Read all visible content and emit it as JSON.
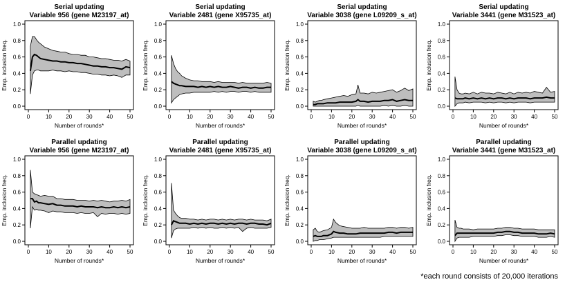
{
  "chart_data": [
    {
      "type": "area",
      "title_line1": "Serial updating",
      "title_line2": "Variable 956 (gene M23197_at)",
      "xlabel": "Number of rounds*",
      "ylabel": "Emp. inclusion freq.",
      "xlim": [
        0,
        50
      ],
      "ylim": [
        0,
        1
      ],
      "xticks": [
        0,
        10,
        20,
        30,
        40,
        50
      ],
      "yticks": [
        0.0,
        0.2,
        0.4,
        0.6,
        0.8,
        1.0
      ],
      "x": [
        1,
        2,
        3,
        4,
        5,
        6,
        8,
        10,
        12,
        14,
        16,
        18,
        20,
        22,
        24,
        26,
        28,
        30,
        32,
        34,
        36,
        38,
        40,
        42,
        44,
        46,
        48,
        50
      ],
      "mean": [
        0.43,
        0.6,
        0.63,
        0.62,
        0.6,
        0.58,
        0.57,
        0.56,
        0.55,
        0.55,
        0.54,
        0.54,
        0.53,
        0.53,
        0.52,
        0.52,
        0.51,
        0.5,
        0.49,
        0.49,
        0.48,
        0.48,
        0.47,
        0.47,
        0.46,
        0.45,
        0.48,
        0.47
      ],
      "upper": [
        0.73,
        0.85,
        0.85,
        0.81,
        0.78,
        0.76,
        0.72,
        0.7,
        0.68,
        0.67,
        0.66,
        0.66,
        0.64,
        0.63,
        0.63,
        0.62,
        0.62,
        0.6,
        0.6,
        0.59,
        0.58,
        0.58,
        0.57,
        0.56,
        0.56,
        0.55,
        0.57,
        0.55
      ],
      "lower": [
        0.15,
        0.38,
        0.43,
        0.44,
        0.44,
        0.43,
        0.43,
        0.43,
        0.44,
        0.43,
        0.43,
        0.42,
        0.43,
        0.42,
        0.42,
        0.41,
        0.41,
        0.4,
        0.39,
        0.39,
        0.38,
        0.38,
        0.37,
        0.38,
        0.37,
        0.35,
        0.38,
        0.38
      ]
    },
    {
      "type": "area",
      "title_line1": "Serial updating",
      "title_line2": "Variable 2481 (gene X95735_at)",
      "xlabel": "Number of rounds*",
      "ylabel": "Emp. inclusion freq.",
      "xlim": [
        0,
        50
      ],
      "ylim": [
        0,
        1
      ],
      "xticks": [
        0,
        10,
        20,
        30,
        40,
        50
      ],
      "yticks": [
        0.0,
        0.2,
        0.4,
        0.6,
        0.8,
        1.0
      ],
      "x": [
        1,
        2,
        3,
        4,
        5,
        6,
        8,
        10,
        12,
        14,
        16,
        18,
        20,
        22,
        24,
        26,
        28,
        30,
        32,
        34,
        36,
        38,
        40,
        42,
        44,
        46,
        48,
        50
      ],
      "mean": [
        0.3,
        0.28,
        0.27,
        0.26,
        0.25,
        0.25,
        0.24,
        0.24,
        0.24,
        0.23,
        0.24,
        0.23,
        0.24,
        0.23,
        0.24,
        0.23,
        0.23,
        0.24,
        0.23,
        0.22,
        0.23,
        0.23,
        0.22,
        0.23,
        0.22,
        0.22,
        0.23,
        0.23
      ],
      "upper": [
        0.62,
        0.52,
        0.46,
        0.42,
        0.4,
        0.37,
        0.34,
        0.32,
        0.31,
        0.31,
        0.3,
        0.3,
        0.3,
        0.29,
        0.3,
        0.29,
        0.29,
        0.29,
        0.29,
        0.28,
        0.29,
        0.28,
        0.28,
        0.28,
        0.28,
        0.28,
        0.29,
        0.28
      ],
      "lower": [
        0.04,
        0.08,
        0.1,
        0.12,
        0.14,
        0.15,
        0.16,
        0.16,
        0.17,
        0.17,
        0.17,
        0.17,
        0.17,
        0.18,
        0.17,
        0.18,
        0.17,
        0.18,
        0.18,
        0.17,
        0.18,
        0.18,
        0.17,
        0.18,
        0.17,
        0.17,
        0.17,
        0.17
      ]
    },
    {
      "type": "area",
      "title_line1": "Serial updating",
      "title_line2": "Variable 3038 (gene L09209_s_at)",
      "xlabel": "Number of rounds*",
      "ylabel": "Emp. inclusion freq.",
      "xlim": [
        0,
        50
      ],
      "ylim": [
        0,
        1
      ],
      "xticks": [
        0,
        10,
        20,
        30,
        40,
        50
      ],
      "yticks": [
        0.0,
        0.2,
        0.4,
        0.6,
        0.8,
        1.0
      ],
      "x": [
        1,
        2,
        3,
        4,
        5,
        6,
        8,
        10,
        12,
        14,
        16,
        18,
        20,
        22,
        23,
        24,
        26,
        28,
        30,
        32,
        34,
        36,
        38,
        40,
        42,
        44,
        46,
        48,
        50
      ],
      "mean": [
        0.02,
        0.02,
        0.03,
        0.03,
        0.03,
        0.03,
        0.04,
        0.04,
        0.04,
        0.05,
        0.05,
        0.05,
        0.05,
        0.06,
        0.08,
        0.06,
        0.06,
        0.05,
        0.06,
        0.06,
        0.06,
        0.07,
        0.07,
        0.08,
        0.06,
        0.07,
        0.08,
        0.07,
        0.07
      ],
      "upper": [
        0.06,
        0.05,
        0.06,
        0.07,
        0.07,
        0.08,
        0.09,
        0.1,
        0.11,
        0.12,
        0.13,
        0.12,
        0.14,
        0.15,
        0.26,
        0.16,
        0.16,
        0.15,
        0.17,
        0.16,
        0.17,
        0.18,
        0.19,
        0.2,
        0.17,
        0.19,
        0.22,
        0.19,
        0.21
      ],
      "lower": [
        0.0,
        0.0,
        0.0,
        0.0,
        0.0,
        0.0,
        0.0,
        0.0,
        0.0,
        0.0,
        0.0,
        0.0,
        0.0,
        0.0,
        0.01,
        0.0,
        0.0,
        0.0,
        0.0,
        0.0,
        0.0,
        0.01,
        0.0,
        0.01,
        0.0,
        0.0,
        0.01,
        0.0,
        0.0
      ]
    },
    {
      "type": "area",
      "title_line1": "Serial updating",
      "title_line2": "Variable 3441 (gene M31523_at)",
      "xlabel": "Number of rounds*",
      "ylabel": "Emp. inclusion freq.",
      "xlim": [
        0,
        50
      ],
      "ylim": [
        0,
        1
      ],
      "xticks": [
        0,
        10,
        20,
        30,
        40,
        50
      ],
      "yticks": [
        0.0,
        0.2,
        0.4,
        0.6,
        0.8,
        1.0
      ],
      "x": [
        1,
        2,
        3,
        4,
        5,
        6,
        8,
        10,
        12,
        14,
        16,
        18,
        20,
        22,
        24,
        26,
        28,
        30,
        32,
        34,
        36,
        38,
        40,
        42,
        44,
        46,
        48,
        50
      ],
      "mean": [
        0.1,
        0.09,
        0.09,
        0.09,
        0.09,
        0.1,
        0.09,
        0.1,
        0.09,
        0.1,
        0.09,
        0.1,
        0.09,
        0.1,
        0.1,
        0.09,
        0.1,
        0.09,
        0.1,
        0.1,
        0.1,
        0.09,
        0.1,
        0.1,
        0.1,
        0.11,
        0.1,
        0.1
      ],
      "upper": [
        0.36,
        0.2,
        0.16,
        0.15,
        0.15,
        0.16,
        0.15,
        0.17,
        0.15,
        0.17,
        0.16,
        0.16,
        0.15,
        0.17,
        0.16,
        0.15,
        0.17,
        0.15,
        0.17,
        0.16,
        0.17,
        0.16,
        0.18,
        0.17,
        0.16,
        0.23,
        0.17,
        0.18
      ],
      "lower": [
        0.0,
        0.03,
        0.04,
        0.04,
        0.04,
        0.05,
        0.04,
        0.05,
        0.05,
        0.05,
        0.04,
        0.05,
        0.04,
        0.05,
        0.05,
        0.04,
        0.05,
        0.04,
        0.05,
        0.05,
        0.05,
        0.04,
        0.05,
        0.05,
        0.05,
        0.05,
        0.05,
        0.05
      ]
    },
    {
      "type": "area",
      "title_line1": "Parallel updating",
      "title_line2": "Variable 956 (gene M23197_at)",
      "xlabel": "Number of rounds*",
      "ylabel": "Emp. inclusion freq.",
      "xlim": [
        0,
        50
      ],
      "ylim": [
        0,
        1
      ],
      "xticks": [
        0,
        10,
        20,
        30,
        40,
        50
      ],
      "yticks": [
        0.0,
        0.2,
        0.4,
        0.6,
        0.8,
        1.0
      ],
      "x": [
        1,
        2,
        3,
        4,
        5,
        6,
        8,
        10,
        12,
        14,
        16,
        18,
        20,
        22,
        24,
        26,
        28,
        30,
        32,
        34,
        36,
        38,
        40,
        42,
        44,
        46,
        48,
        50
      ],
      "mean": [
        0.52,
        0.52,
        0.48,
        0.49,
        0.47,
        0.47,
        0.46,
        0.45,
        0.46,
        0.44,
        0.44,
        0.43,
        0.43,
        0.43,
        0.42,
        0.43,
        0.42,
        0.42,
        0.42,
        0.41,
        0.42,
        0.41,
        0.41,
        0.42,
        0.41,
        0.42,
        0.41,
        0.42
      ],
      "upper": [
        0.87,
        0.6,
        0.58,
        0.57,
        0.56,
        0.55,
        0.56,
        0.55,
        0.55,
        0.52,
        0.52,
        0.51,
        0.51,
        0.51,
        0.5,
        0.5,
        0.5,
        0.49,
        0.5,
        0.49,
        0.5,
        0.49,
        0.48,
        0.49,
        0.49,
        0.5,
        0.49,
        0.51
      ],
      "lower": [
        0.16,
        0.42,
        0.38,
        0.39,
        0.38,
        0.38,
        0.37,
        0.35,
        0.37,
        0.36,
        0.36,
        0.35,
        0.35,
        0.35,
        0.34,
        0.35,
        0.34,
        0.34,
        0.35,
        0.3,
        0.34,
        0.33,
        0.34,
        0.34,
        0.33,
        0.34,
        0.33,
        0.34
      ]
    },
    {
      "type": "area",
      "title_line1": "Parallel updating",
      "title_line2": "Variable 2481 (gene X95735_at)",
      "xlabel": "Number of rounds*",
      "ylabel": "Emp. inclusion freq.",
      "xlim": [
        0,
        50
      ],
      "ylim": [
        0,
        1
      ],
      "xticks": [
        0,
        10,
        20,
        30,
        40,
        50
      ],
      "yticks": [
        0.0,
        0.2,
        0.4,
        0.6,
        0.8,
        1.0
      ],
      "x": [
        1,
        2,
        3,
        4,
        5,
        6,
        8,
        10,
        12,
        14,
        16,
        18,
        20,
        22,
        24,
        26,
        28,
        30,
        32,
        34,
        36,
        38,
        40,
        42,
        44,
        46,
        48,
        50
      ],
      "mean": [
        0.2,
        0.25,
        0.24,
        0.23,
        0.22,
        0.22,
        0.22,
        0.21,
        0.22,
        0.21,
        0.22,
        0.21,
        0.22,
        0.22,
        0.21,
        0.22,
        0.21,
        0.22,
        0.21,
        0.22,
        0.22,
        0.21,
        0.22,
        0.22,
        0.21,
        0.21,
        0.2,
        0.22
      ],
      "upper": [
        0.71,
        0.38,
        0.34,
        0.31,
        0.29,
        0.28,
        0.28,
        0.27,
        0.27,
        0.26,
        0.27,
        0.26,
        0.27,
        0.27,
        0.26,
        0.27,
        0.26,
        0.27,
        0.26,
        0.27,
        0.27,
        0.26,
        0.27,
        0.26,
        0.26,
        0.26,
        0.25,
        0.27
      ],
      "lower": [
        0.04,
        0.13,
        0.15,
        0.16,
        0.16,
        0.16,
        0.16,
        0.16,
        0.17,
        0.16,
        0.17,
        0.16,
        0.17,
        0.16,
        0.16,
        0.17,
        0.16,
        0.17,
        0.16,
        0.17,
        0.12,
        0.16,
        0.17,
        0.16,
        0.16,
        0.16,
        0.16,
        0.17
      ]
    },
    {
      "type": "area",
      "title_line1": "Parallel updating",
      "title_line2": "Variable 3038 (gene L09209_s_at)",
      "xlabel": "Number of rounds*",
      "ylabel": "Emp. inclusion freq.",
      "xlim": [
        0,
        50
      ],
      "ylim": [
        0,
        1
      ],
      "xticks": [
        0,
        10,
        20,
        30,
        40,
        50
      ],
      "yticks": [
        0.0,
        0.2,
        0.4,
        0.6,
        0.8,
        1.0
      ],
      "x": [
        1,
        2,
        3,
        4,
        5,
        6,
        8,
        10,
        11,
        12,
        14,
        16,
        18,
        20,
        22,
        24,
        26,
        28,
        30,
        32,
        34,
        36,
        38,
        40,
        42,
        44,
        46,
        48,
        50
      ],
      "mean": [
        0.06,
        0.07,
        0.06,
        0.06,
        0.06,
        0.07,
        0.07,
        0.09,
        0.12,
        0.11,
        0.1,
        0.1,
        0.09,
        0.09,
        0.09,
        0.1,
        0.1,
        0.1,
        0.1,
        0.1,
        0.1,
        0.1,
        0.11,
        0.11,
        0.1,
        0.11,
        0.11,
        0.11,
        0.11
      ],
      "upper": [
        0.14,
        0.16,
        0.12,
        0.11,
        0.12,
        0.13,
        0.14,
        0.17,
        0.27,
        0.23,
        0.19,
        0.18,
        0.17,
        0.16,
        0.16,
        0.16,
        0.17,
        0.16,
        0.16,
        0.16,
        0.16,
        0.16,
        0.17,
        0.17,
        0.16,
        0.17,
        0.17,
        0.16,
        0.17
      ],
      "lower": [
        0.0,
        0.01,
        0.01,
        0.02,
        0.02,
        0.02,
        0.03,
        0.04,
        0.05,
        0.05,
        0.05,
        0.05,
        0.05,
        0.05,
        0.05,
        0.05,
        0.05,
        0.05,
        0.05,
        0.05,
        0.05,
        0.06,
        0.06,
        0.06,
        0.06,
        0.06,
        0.06,
        0.06,
        0.06
      ]
    },
    {
      "type": "area",
      "title_line1": "Parallel updating",
      "title_line2": "Variable 3441 (gene M31523_at)",
      "xlabel": "Number of rounds*",
      "ylabel": "Emp. inclusion freq.",
      "xlim": [
        0,
        50
      ],
      "ylim": [
        0,
        1
      ],
      "xticks": [
        0,
        10,
        20,
        30,
        40,
        50
      ],
      "yticks": [
        0.0,
        0.2,
        0.4,
        0.6,
        0.8,
        1.0
      ],
      "x": [
        1,
        2,
        3,
        4,
        5,
        6,
        8,
        10,
        12,
        14,
        16,
        18,
        20,
        22,
        24,
        26,
        28,
        30,
        32,
        34,
        36,
        38,
        40,
        42,
        44,
        46,
        48,
        50
      ],
      "mean": [
        0.07,
        0.1,
        0.1,
        0.1,
        0.1,
        0.1,
        0.1,
        0.1,
        0.1,
        0.1,
        0.1,
        0.1,
        0.1,
        0.11,
        0.11,
        0.12,
        0.12,
        0.11,
        0.11,
        0.1,
        0.1,
        0.1,
        0.1,
        0.09,
        0.09,
        0.09,
        0.1,
        0.09
      ],
      "upper": [
        0.26,
        0.17,
        0.16,
        0.16,
        0.15,
        0.15,
        0.15,
        0.14,
        0.15,
        0.15,
        0.15,
        0.15,
        0.15,
        0.16,
        0.16,
        0.17,
        0.17,
        0.16,
        0.16,
        0.15,
        0.15,
        0.15,
        0.15,
        0.14,
        0.14,
        0.14,
        0.14,
        0.14
      ],
      "lower": [
        0.0,
        0.04,
        0.05,
        0.05,
        0.05,
        0.05,
        0.05,
        0.06,
        0.06,
        0.06,
        0.06,
        0.06,
        0.06,
        0.07,
        0.07,
        0.08,
        0.08,
        0.07,
        0.07,
        0.06,
        0.06,
        0.06,
        0.06,
        0.05,
        0.05,
        0.05,
        0.06,
        0.05
      ]
    }
  ],
  "footnote": "*each round consists of 20,000 iterations",
  "colors": {
    "band": "#bebebe",
    "line": "#000000",
    "frame": "#000000"
  }
}
